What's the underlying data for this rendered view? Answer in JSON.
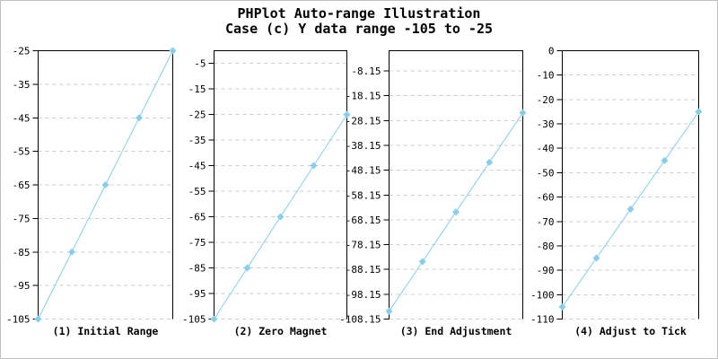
{
  "header": {
    "title": "PHPlot Auto-range Illustration",
    "subtitle": "Case (c) Y data range -105 to -25"
  },
  "colors": {
    "line": "#87ceeb",
    "marker": "#87ceeb",
    "grid": "#cccccc",
    "axis": "#000000",
    "text": "#000000",
    "frame_border": "#c0c0c0",
    "background": "#ffffff"
  },
  "chart_data": [
    {
      "type": "line",
      "title": "(1) Initial Range",
      "x": [
        0,
        1,
        2,
        3,
        4
      ],
      "y": [
        -105,
        -85,
        -65,
        -45,
        -25
      ],
      "ylim": [
        -105,
        -25
      ],
      "yticks": [
        -25,
        -35,
        -45,
        -55,
        -65,
        -75,
        -85,
        -95,
        -105
      ],
      "xlabel": "",
      "ylabel": "",
      "grid": "horizontal-dashed",
      "marker": "diamond",
      "legend": "none"
    },
    {
      "type": "line",
      "title": "(2) Zero Magnet",
      "x": [
        0,
        1,
        2,
        3,
        4
      ],
      "y": [
        -105,
        -85,
        -65,
        -45,
        -25
      ],
      "ylim": [
        -105,
        0
      ],
      "yticks": [
        -5,
        -15,
        -25,
        -35,
        -45,
        -55,
        -65,
        -75,
        -85,
        -95,
        -105
      ],
      "xlabel": "",
      "ylabel": "",
      "grid": "horizontal-dashed",
      "marker": "diamond",
      "legend": "none"
    },
    {
      "type": "line",
      "title": "(3) End Adjustment",
      "x": [
        0,
        1,
        2,
        3,
        4
      ],
      "y": [
        -105,
        -85,
        -65,
        -45,
        -25
      ],
      "ylim": [
        -108.15,
        0
      ],
      "yticks": [
        -8.15,
        -18.15,
        -28.15,
        -38.15,
        -48.15,
        -58.15,
        -68.15,
        -78.15,
        -88.15,
        -98.15,
        -108.15
      ],
      "xlabel": "",
      "ylabel": "",
      "grid": "horizontal-dashed",
      "marker": "diamond",
      "legend": "none"
    },
    {
      "type": "line",
      "title": "(4) Adjust to Tick",
      "x": [
        0,
        1,
        2,
        3,
        4
      ],
      "y": [
        -105,
        -85,
        -65,
        -45,
        -25
      ],
      "ylim": [
        -110,
        0
      ],
      "yticks": [
        0,
        -10,
        -20,
        -30,
        -40,
        -50,
        -60,
        -70,
        -80,
        -90,
        -100,
        -110
      ],
      "xlabel": "",
      "ylabel": "",
      "grid": "horizontal-dashed",
      "marker": "diamond",
      "legend": "none"
    }
  ]
}
